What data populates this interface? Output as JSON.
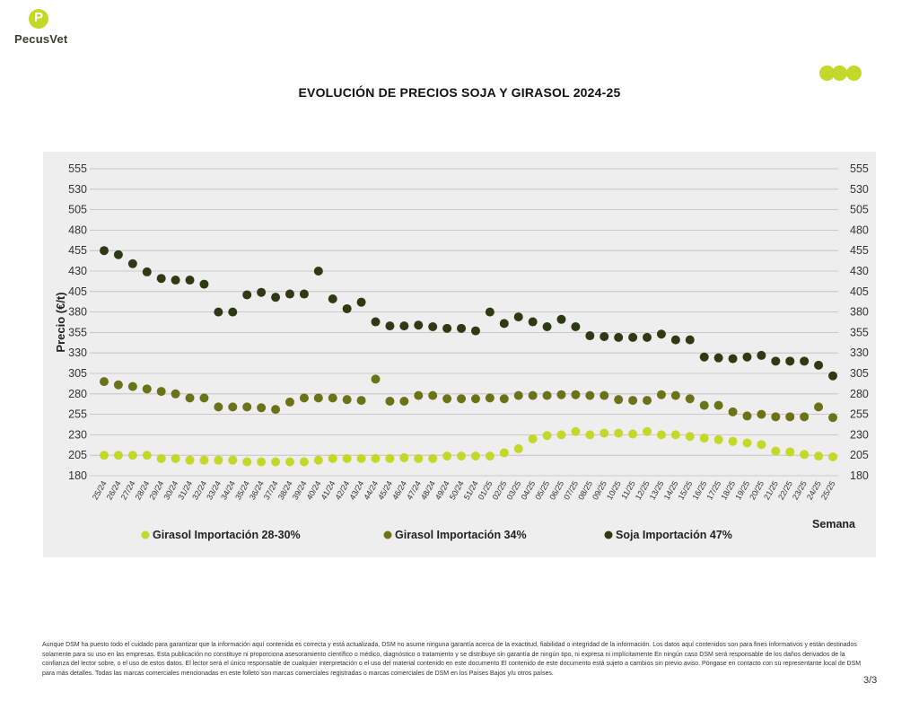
{
  "brand": {
    "name": "PecusVet",
    "mark": "P"
  },
  "colors": {
    "girasol_28_30": "#c3d92a",
    "girasol_34": "#6b7318",
    "soja_47": "#2f3a12",
    "panel_bg": "#eeeeee",
    "grid": "#bdbdbd"
  },
  "page_number": "3/3",
  "disclaimer": "Aunque DSM ha puesto todo el cuidado para garantizar que la información aquí contenida es correcta y está actualizada, DSM no asume ninguna garantía acerca de la exactitud, fiabilidad o integridad de la información. Los datos aquí contenidos son para fines informativos y están destinados solamente para su uso en las empresas. Esta publicación no constituye ni proporciona asesoramiento científico o médico, diagnóstico o tratamiento y se distribuye sin garantía de ningún tipo, ni expresa ni implícitamente En ningún caso DSM será responsable de los daños derivados de la confianza del lector sobre, o el uso de estos datos. El lector será el único responsable de cualquier interpretación o el uso del material contenido en este documento El contenido de este documento está sujeto a cambios sin previo aviso. Póngase en contacto con su representante local de DSM para más detalles. Todas las marcas comerciales mencionadas en este folleto son marcas comerciales registradas o marcas comerciales de DSM en los Países Bajos y/u otros países.",
  "chart_data": {
    "type": "scatter",
    "title": "EVOLUCIÓN DE PRECIOS SOJA Y GIRASOL 2024-25",
    "ylabel": "Precio (€/t)",
    "xlabel": "Semana",
    "ylim": [
      180,
      555
    ],
    "yticks": [
      180,
      205,
      230,
      255,
      280,
      305,
      330,
      355,
      380,
      405,
      430,
      455,
      480,
      505,
      530,
      555
    ],
    "grid": true,
    "legend_position": "bottom",
    "categories": [
      "25/24",
      "26/24",
      "27/24",
      "28/24",
      "29/24",
      "30/24",
      "31/24",
      "32/24",
      "33/24",
      "34/24",
      "35/24",
      "36/24",
      "37/24",
      "38/24",
      "39/24",
      "40/24",
      "41/24",
      "42/24",
      "43/24",
      "44/24",
      "45/24",
      "46/24",
      "47/24",
      "48/24",
      "49/24",
      "50/24",
      "51/24",
      "01/25",
      "02/25",
      "03/25",
      "04/25",
      "05/25",
      "06/25",
      "07/25",
      "08/25",
      "09/25",
      "10/25",
      "11/25",
      "12/25",
      "13/25",
      "14/25",
      "15/25",
      "16/25",
      "17/25",
      "18/25",
      "19/25",
      "20/25",
      "21/25",
      "22/25",
      "23/25",
      "24/25",
      "25/25"
    ],
    "series": [
      {
        "name": "Girasol Importación 28-30%",
        "values": [
          205,
          205,
          205,
          205,
          201,
          201,
          199,
          199,
          199,
          199,
          197,
          197,
          197,
          197,
          197,
          199,
          201,
          201,
          201,
          201,
          201,
          202,
          201,
          201,
          204,
          204,
          204,
          204,
          208,
          213,
          225,
          229,
          230,
          234,
          230,
          232,
          232,
          231,
          234,
          230,
          230,
          228,
          226,
          224,
          222,
          220,
          218,
          210,
          209,
          206,
          204,
          203
        ]
      },
      {
        "name": "Girasol Importación 34%",
        "values": [
          295,
          291,
          289,
          286,
          283,
          280,
          275,
          275,
          264,
          264,
          264,
          263,
          261,
          270,
          275,
          275,
          275,
          273,
          272,
          298,
          271,
          271,
          278,
          278,
          274,
          274,
          274,
          275,
          274,
          278,
          278,
          278,
          279,
          279,
          278,
          278,
          273,
          272,
          272,
          279,
          278,
          274,
          266,
          266,
          258,
          253,
          255,
          252,
          252,
          252,
          264,
          251
        ]
      },
      {
        "name": "Soja Importación 47%",
        "values": [
          455,
          450,
          439,
          429,
          421,
          419,
          419,
          414,
          380,
          380,
          401,
          404,
          398,
          402,
          402,
          430,
          396,
          384,
          392,
          368,
          363,
          363,
          364,
          362,
          360,
          360,
          357,
          380,
          366,
          374,
          368,
          362,
          371,
          362,
          351,
          350,
          349,
          349,
          349,
          353,
          346,
          346,
          325,
          324,
          323,
          325,
          327,
          320,
          320,
          320,
          315,
          302
        ]
      }
    ]
  }
}
